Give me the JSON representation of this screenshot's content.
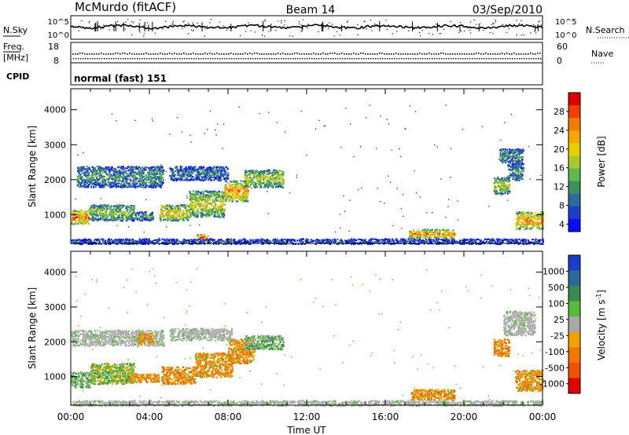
{
  "header": {
    "station": "McMurdo (fitACF)",
    "beam": "Beam 14",
    "date": "03/Sep/2010"
  },
  "noise_panel": {
    "left_label": "N.Sky",
    "right_label": "N.Search",
    "left_ticks": [
      "10^5",
      "10^0"
    ],
    "right_ticks": [
      "10^5",
      "10^0"
    ]
  },
  "freq_panel": {
    "left_label_top": "Freq.",
    "left_label_unit": "[MHz]",
    "right_label": "Nave",
    "left_ticks": [
      "18",
      "8"
    ],
    "right_ticks": [
      "60",
      "0"
    ]
  },
  "cpid": {
    "label": "CPID",
    "value": "normal (fast) 151"
  },
  "chart_data": [
    {
      "type": "heatmap",
      "name": "power",
      "ylabel": "Slant Range [km]",
      "xlabel": "",
      "ylim": [
        180,
        4600
      ],
      "xlim": [
        0,
        24
      ],
      "y_ticks": [
        "4000",
        "3000",
        "2000",
        "1000"
      ],
      "colorbar": {
        "label": "Power [dB]",
        "ticks": [
          "28",
          "24",
          "20",
          "16",
          "12",
          "8",
          "4"
        ],
        "colors": [
          "#dd0000",
          "#f04000",
          "#f47a00",
          "#f4a800",
          "#e8d000",
          "#a8c830",
          "#5fb84a",
          "#3c9060",
          "#2e6aa0",
          "#1f3ec8",
          "#0a0aff"
        ]
      },
      "echo_regions": [
        {
          "t0": 0.0,
          "t1": 0.9,
          "r0": 750,
          "r1": 1150,
          "intensity": 0.75
        },
        {
          "t0": 0.3,
          "t1": 4.7,
          "r0": 1800,
          "r1": 2400,
          "intensity": 0.3
        },
        {
          "t0": 0.9,
          "t1": 3.2,
          "r0": 850,
          "r1": 1300,
          "intensity": 0.45
        },
        {
          "t0": 3.0,
          "t1": 4.2,
          "r0": 850,
          "r1": 1100,
          "intensity": 0.3
        },
        {
          "t0": 4.5,
          "t1": 6.0,
          "r0": 850,
          "r1": 1300,
          "intensity": 0.6
        },
        {
          "t0": 6.0,
          "t1": 7.8,
          "r0": 950,
          "r1": 1700,
          "intensity": 0.55
        },
        {
          "t0": 7.8,
          "t1": 9.0,
          "r0": 1400,
          "r1": 2000,
          "intensity": 0.7
        },
        {
          "t0": 8.8,
          "t1": 10.8,
          "r0": 1800,
          "r1": 2300,
          "intensity": 0.5
        },
        {
          "t0": 5.0,
          "t1": 8.0,
          "r0": 2000,
          "r1": 2400,
          "intensity": 0.25
        },
        {
          "t0": 17.2,
          "t1": 19.5,
          "r0": 350,
          "r1": 600,
          "intensity": 0.7
        },
        {
          "t0": 21.5,
          "t1": 22.3,
          "r0": 1600,
          "r1": 2100,
          "intensity": 0.5
        },
        {
          "t0": 21.8,
          "t1": 23.0,
          "r0": 2500,
          "r1": 2900,
          "intensity": 0.3
        },
        {
          "t0": 22.2,
          "t1": 23.0,
          "r0": 2000,
          "r1": 2500,
          "intensity": 0.3
        },
        {
          "t0": 22.6,
          "t1": 24.0,
          "r0": 600,
          "r1": 1100,
          "intensity": 0.7
        },
        {
          "t0": 6.4,
          "t1": 7.0,
          "r0": 250,
          "r1": 450,
          "intensity": 0.85
        },
        {
          "t0": 0.0,
          "t1": 24.0,
          "r0": 180,
          "r1": 330,
          "intensity": 0.15
        }
      ]
    },
    {
      "type": "heatmap",
      "name": "velocity",
      "ylabel": "Slant Range [km]",
      "xlabel": "Time UT",
      "ylim": [
        180,
        4600
      ],
      "xlim": [
        0,
        24
      ],
      "x_ticks": [
        "00:00",
        "04:00",
        "08:00",
        "12:00",
        "16:00",
        "20:00",
        "00:00"
      ],
      "y_ticks": [
        "4000",
        "3000",
        "2000",
        "1000"
      ],
      "colorbar": {
        "label": "Velocity [m s^-1]",
        "ticks": [
          "1000",
          "500",
          "100",
          "25",
          "-25",
          "-100",
          "-500",
          "-1000"
        ],
        "colors": [
          "#1a3ec8",
          "#2a6a9a",
          "#3c8a50",
          "#5aba3a",
          "#a8a8a8",
          "#f0a000",
          "#f07800",
          "#f05000",
          "#e00000"
        ]
      },
      "echo_regions": [
        {
          "t0": 0.0,
          "t1": 4.7,
          "r0": 1900,
          "r1": 2350,
          "v": "grey"
        },
        {
          "t0": 0.0,
          "t1": 1.0,
          "r0": 700,
          "r1": 1150,
          "v": "green"
        },
        {
          "t0": 1.0,
          "t1": 3.2,
          "r0": 800,
          "r1": 1400,
          "v": "mix"
        },
        {
          "t0": 3.0,
          "t1": 4.5,
          "r0": 850,
          "r1": 1100,
          "v": "orange"
        },
        {
          "t0": 3.4,
          "t1": 4.2,
          "r0": 1950,
          "r1": 2250,
          "v": "orange"
        },
        {
          "t0": 4.6,
          "t1": 6.3,
          "r0": 800,
          "r1": 1300,
          "v": "orange"
        },
        {
          "t0": 6.3,
          "t1": 8.2,
          "r0": 1000,
          "r1": 1700,
          "v": "orange"
        },
        {
          "t0": 8.0,
          "t1": 9.3,
          "r0": 1400,
          "r1": 2100,
          "v": "orange"
        },
        {
          "t0": 8.8,
          "t1": 10.8,
          "r0": 1800,
          "r1": 2200,
          "v": "green"
        },
        {
          "t0": 5.0,
          "t1": 8.2,
          "r0": 2050,
          "r1": 2400,
          "v": "grey"
        },
        {
          "t0": 17.3,
          "t1": 19.5,
          "r0": 350,
          "r1": 650,
          "v": "orange"
        },
        {
          "t0": 21.5,
          "t1": 22.3,
          "r0": 1600,
          "r1": 2100,
          "v": "orange"
        },
        {
          "t0": 22.0,
          "t1": 23.6,
          "r0": 2200,
          "r1": 2900,
          "v": "grey"
        },
        {
          "t0": 22.6,
          "t1": 24.0,
          "r0": 600,
          "r1": 1200,
          "v": "orange"
        },
        {
          "t0": 0.0,
          "t1": 24.0,
          "r0": 180,
          "r1": 330,
          "v": "grey"
        }
      ]
    }
  ]
}
